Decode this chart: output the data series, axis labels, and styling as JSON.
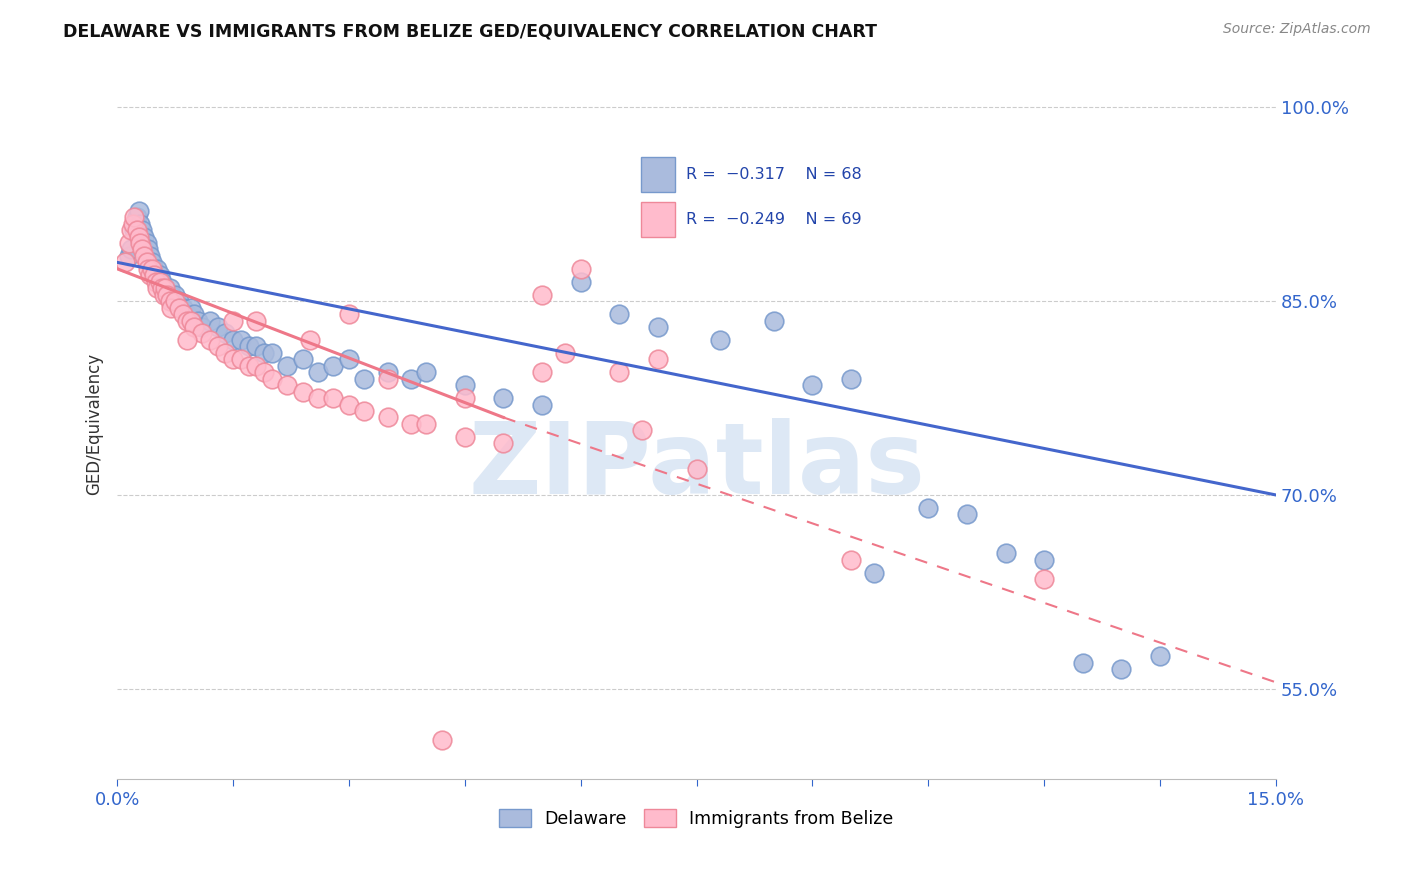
{
  "title": "DELAWARE VS IMMIGRANTS FROM BELIZE GED/EQUIVALENCY CORRELATION CHART",
  "source": "Source: ZipAtlas.com",
  "ylabel": "GED/Equivalency",
  "xlim": [
    0.0,
    15.0
  ],
  "ylim": [
    48.0,
    103.0
  ],
  "yticks": [
    55.0,
    70.0,
    85.0,
    100.0
  ],
  "ytick_labels": [
    "55.0%",
    "70.0%",
    "85.0%",
    "100.0%"
  ],
  "blue_color": "#aabbdd",
  "blue_edge_color": "#7799cc",
  "pink_color": "#ffbbcc",
  "pink_edge_color": "#ee8899",
  "trend_blue": "#4466cc",
  "trend_pink": "#ee7788",
  "watermark_color": "#dde8f5",
  "blue_trend_x0": 0.0,
  "blue_trend_y0": 88.0,
  "blue_trend_x1": 15.0,
  "blue_trend_y1": 70.0,
  "pink_solid_x0": 0.0,
  "pink_solid_y0": 87.5,
  "pink_solid_x1": 5.0,
  "pink_solid_y1": 76.0,
  "pink_dash_x0": 5.0,
  "pink_dash_y0": 76.0,
  "pink_dash_x1": 15.0,
  "pink_dash_y1": 55.5,
  "blue_x": [
    0.15,
    0.18,
    0.22,
    0.25,
    0.28,
    0.3,
    0.32,
    0.35,
    0.38,
    0.4,
    0.42,
    0.45,
    0.48,
    0.5,
    0.52,
    0.55,
    0.58,
    0.6,
    0.62,
    0.65,
    0.68,
    0.7,
    0.72,
    0.75,
    0.78,
    0.8,
    0.85,
    0.9,
    0.95,
    1.0,
    1.05,
    1.1,
    1.2,
    1.3,
    1.4,
    1.5,
    1.6,
    1.7,
    1.8,
    1.9,
    2.0,
    2.2,
    2.4,
    2.6,
    2.8,
    3.0,
    3.2,
    3.5,
    3.8,
    4.0,
    4.5,
    5.0,
    5.5,
    6.0,
    6.5,
    7.0,
    7.8,
    8.5,
    9.0,
    9.5,
    10.5,
    11.0,
    11.5,
    12.0,
    12.5,
    13.0,
    13.5,
    9.8
  ],
  "blue_y": [
    88.5,
    89.0,
    90.5,
    91.5,
    92.0,
    91.0,
    90.5,
    90.0,
    89.5,
    89.0,
    88.5,
    88.0,
    87.5,
    87.0,
    87.5,
    87.0,
    86.5,
    86.0,
    86.0,
    85.5,
    86.0,
    85.5,
    85.0,
    85.5,
    85.0,
    85.0,
    84.5,
    84.0,
    84.5,
    84.0,
    83.5,
    83.0,
    83.5,
    83.0,
    82.5,
    82.0,
    82.0,
    81.5,
    81.5,
    81.0,
    81.0,
    80.0,
    80.5,
    79.5,
    80.0,
    80.5,
    79.0,
    79.5,
    79.0,
    79.5,
    78.5,
    77.5,
    77.0,
    86.5,
    84.0,
    83.0,
    82.0,
    83.5,
    78.5,
    79.0,
    69.0,
    68.5,
    65.5,
    65.0,
    57.0,
    56.5,
    57.5,
    64.0
  ],
  "pink_x": [
    0.1,
    0.15,
    0.18,
    0.2,
    0.22,
    0.25,
    0.28,
    0.3,
    0.32,
    0.35,
    0.38,
    0.4,
    0.42,
    0.45,
    0.48,
    0.5,
    0.52,
    0.55,
    0.58,
    0.6,
    0.62,
    0.65,
    0.68,
    0.7,
    0.75,
    0.8,
    0.85,
    0.9,
    0.95,
    1.0,
    1.1,
    1.2,
    1.3,
    1.4,
    1.5,
    1.6,
    1.7,
    1.8,
    1.9,
    2.0,
    2.2,
    2.4,
    2.6,
    2.8,
    3.0,
    3.2,
    3.5,
    3.8,
    4.0,
    4.5,
    5.0,
    5.5,
    6.0,
    6.5,
    7.0,
    3.0,
    1.5,
    0.9,
    1.8,
    2.5,
    3.5,
    4.5,
    5.5,
    5.8,
    6.8,
    7.5,
    9.5,
    12.0,
    4.2
  ],
  "pink_y": [
    88.0,
    89.5,
    90.5,
    91.0,
    91.5,
    90.5,
    90.0,
    89.5,
    89.0,
    88.5,
    88.0,
    87.5,
    87.0,
    87.5,
    87.0,
    86.5,
    86.0,
    86.5,
    86.0,
    85.5,
    86.0,
    85.5,
    85.0,
    84.5,
    85.0,
    84.5,
    84.0,
    83.5,
    83.5,
    83.0,
    82.5,
    82.0,
    81.5,
    81.0,
    80.5,
    80.5,
    80.0,
    80.0,
    79.5,
    79.0,
    78.5,
    78.0,
    77.5,
    77.5,
    77.0,
    76.5,
    76.0,
    75.5,
    75.5,
    74.5,
    74.0,
    85.5,
    87.5,
    79.5,
    80.5,
    84.0,
    83.5,
    82.0,
    83.5,
    82.0,
    79.0,
    77.5,
    79.5,
    81.0,
    75.0,
    72.0,
    65.0,
    63.5,
    51.0
  ]
}
